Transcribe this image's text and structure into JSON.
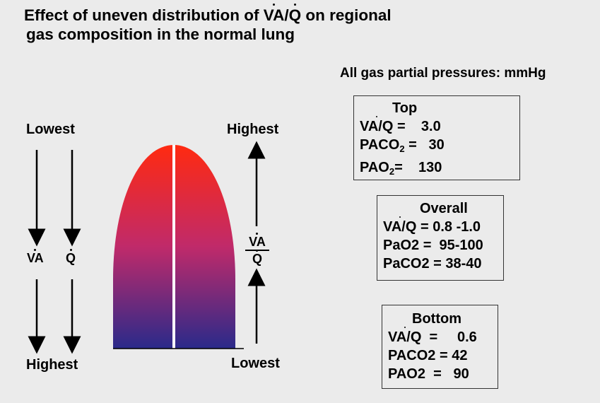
{
  "title": {
    "prefix": "Effect of uneven distribution of ",
    "va": "VA",
    "slash": "/",
    "q": "Q",
    "suffix": " on regional",
    "line2": "gas composition in the normal lung"
  },
  "subtitle": "All gas partial pressures: mmHg",
  "left_axis": {
    "top_label": "Lowest",
    "bottom_label": "Highest",
    "va_label": "VA",
    "q_label": "Q"
  },
  "right_axis": {
    "top_label": "Highest",
    "bottom_label": "Lowest",
    "ratio_numerator": "VA",
    "ratio_denominator": "Q"
  },
  "boxes": {
    "top": {
      "header": "Top",
      "vaq_label": "VA/Q",
      "vaq_value": " =    3.0",
      "paco2_prefix": "PACO",
      "paco2_value": " =   30",
      "pao2_prefix": "PAO",
      "pao2_value": "=    130"
    },
    "overall": {
      "header": "Overall",
      "vaq_label": "VA/Q",
      "vaq_value": " = 0.8 -1.0",
      "pao2": "PaO2 =  95-100",
      "paco2": "PaCO2 = 38-40"
    },
    "bottom": {
      "header": "Bottom",
      "vaq_label": "VA/Q",
      "vaq_value": "  =     0.6",
      "paco2": "PACO2 = 42",
      "pao2": "PAO2  =   90"
    }
  },
  "colors": {
    "lung_top": "#ff2a10",
    "lung_mid": "#c02a6a",
    "lung_bottom": "#2a2a8a",
    "background": "#ebebeb"
  }
}
